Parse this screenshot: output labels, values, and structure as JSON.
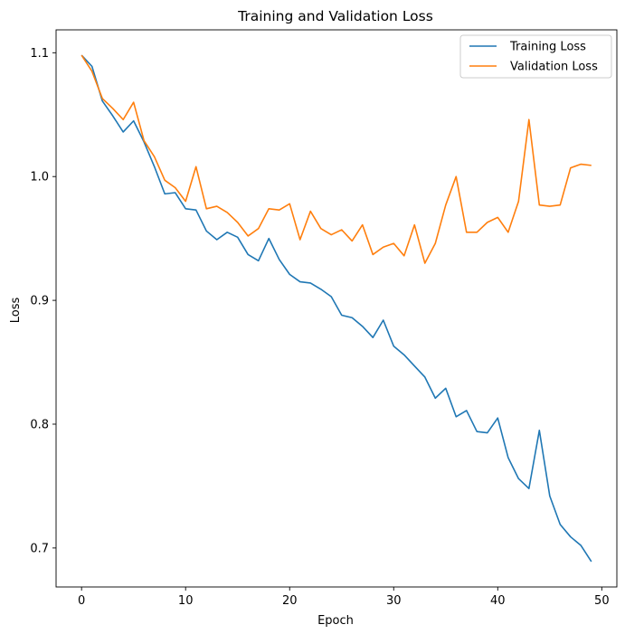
{
  "chart_data": {
    "type": "line",
    "title": "Training and Validation Loss",
    "xlabel": "Epoch",
    "ylabel": "Loss",
    "xlim": [
      -2.45,
      51.45
    ],
    "ylim": [
      0.6685,
      1.1185
    ],
    "xticks": [
      0,
      10,
      20,
      30,
      40,
      50
    ],
    "yticks": [
      0.7,
      0.8,
      0.9,
      1.0,
      1.1
    ],
    "ytick_labels": [
      "0.7",
      "0.8",
      "0.9",
      "1.0",
      "1.1"
    ],
    "grid": false,
    "legend": "top-right",
    "x": [
      0,
      1,
      2,
      3,
      4,
      5,
      6,
      7,
      8,
      9,
      10,
      11,
      12,
      13,
      14,
      15,
      16,
      17,
      18,
      19,
      20,
      21,
      22,
      23,
      24,
      25,
      26,
      27,
      28,
      29,
      30,
      31,
      32,
      33,
      34,
      35,
      36,
      37,
      38,
      39,
      40,
      41,
      42,
      43,
      44,
      45,
      46,
      47,
      48,
      49
    ],
    "series": [
      {
        "name": "Training Loss",
        "color": "#1f77b4",
        "values": [
          1.098,
          1.089,
          1.061,
          1.049,
          1.036,
          1.045,
          1.028,
          1.008,
          0.986,
          0.987,
          0.974,
          0.973,
          0.956,
          0.949,
          0.955,
          0.951,
          0.937,
          0.932,
          0.95,
          0.933,
          0.921,
          0.915,
          0.914,
          0.909,
          0.903,
          0.888,
          0.886,
          0.879,
          0.87,
          0.884,
          0.863,
          0.856,
          0.847,
          0.838,
          0.821,
          0.829,
          0.806,
          0.811,
          0.794,
          0.793,
          0.805,
          0.773,
          0.756,
          0.748,
          0.795,
          0.742,
          0.719,
          0.709,
          0.702,
          0.689
        ]
      },
      {
        "name": "Validation Loss",
        "color": "#ff7f0e",
        "values": [
          1.098,
          1.085,
          1.063,
          1.055,
          1.046,
          1.06,
          1.029,
          1.016,
          0.997,
          0.991,
          0.98,
          1.008,
          0.974,
          0.976,
          0.971,
          0.963,
          0.952,
          0.958,
          0.974,
          0.973,
          0.978,
          0.949,
          0.972,
          0.958,
          0.953,
          0.957,
          0.948,
          0.961,
          0.937,
          0.943,
          0.946,
          0.936,
          0.961,
          0.93,
          0.946,
          0.977,
          1.0,
          0.955,
          0.955,
          0.963,
          0.967,
          0.955,
          0.98,
          1.046,
          0.977,
          0.976,
          0.977,
          1.007,
          1.01,
          1.009
        ]
      }
    ]
  }
}
